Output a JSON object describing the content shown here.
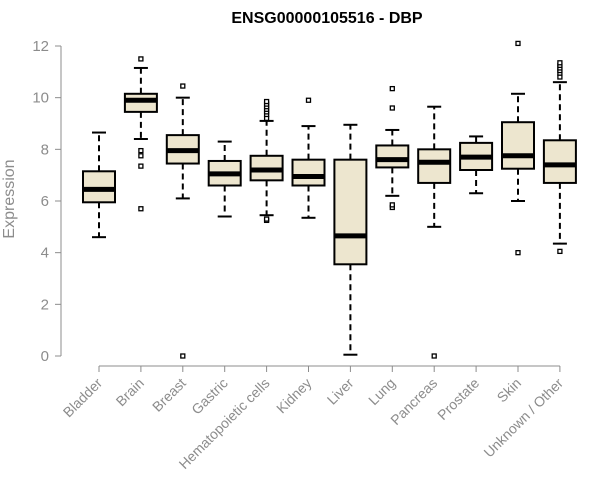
{
  "chart_data": {
    "type": "box",
    "title": "ENSG00000105516 - DBP",
    "xlabel": "",
    "ylabel": "Expression",
    "ylim": [
      0,
      12
    ],
    "yticks": [
      0,
      2,
      4,
      6,
      8,
      10,
      12
    ],
    "grid": false,
    "legend": "none",
    "colors": {
      "box_fill": "#ede6cf",
      "stroke": "#000000",
      "axis_text": "#8c8c8c"
    },
    "categories": [
      "Bladder",
      "Brain",
      "Breast",
      "Gastric",
      "Hematopoietic cells",
      "Kidney",
      "Liver",
      "Lung",
      "Pancreas",
      "Prostate",
      "Skin",
      "Unknown / Other"
    ],
    "boxes": [
      {
        "category": "Bladder",
        "whisker_low": 4.6,
        "q1": 5.95,
        "median": 6.45,
        "q3": 7.15,
        "whisker_high": 8.65,
        "outliers": []
      },
      {
        "category": "Brain",
        "whisker_low": 8.4,
        "q1": 9.45,
        "median": 9.9,
        "q3": 10.15,
        "whisker_high": 11.15,
        "outliers": [
          5.7,
          7.35,
          7.75,
          7.95,
          11.5
        ]
      },
      {
        "category": "Breast",
        "whisker_low": 6.1,
        "q1": 7.45,
        "median": 7.95,
        "q3": 8.55,
        "whisker_high": 10.0,
        "outliers": [
          0.0,
          10.45
        ]
      },
      {
        "category": "Gastric",
        "whisker_low": 5.4,
        "q1": 6.6,
        "median": 7.05,
        "q3": 7.55,
        "whisker_high": 8.3,
        "outliers": []
      },
      {
        "category": "Hematopoietic cells",
        "whisker_low": 5.45,
        "q1": 6.8,
        "median": 7.2,
        "q3": 7.75,
        "whisker_high": 9.1,
        "outliers": [
          5.25,
          5.3,
          9.2,
          9.35,
          9.45,
          9.55,
          9.65,
          9.75,
          9.85
        ]
      },
      {
        "category": "Kidney",
        "whisker_low": 5.35,
        "q1": 6.6,
        "median": 6.95,
        "q3": 7.6,
        "whisker_high": 8.9,
        "outliers": [
          9.9
        ]
      },
      {
        "category": "Liver",
        "whisker_low": 0.05,
        "q1": 3.55,
        "median": 4.65,
        "q3": 7.6,
        "whisker_high": 8.95,
        "outliers": []
      },
      {
        "category": "Lung",
        "whisker_low": 6.2,
        "q1": 7.3,
        "median": 7.6,
        "q3": 8.15,
        "whisker_high": 8.75,
        "outliers": [
          5.75,
          5.85,
          9.6,
          10.35
        ]
      },
      {
        "category": "Pancreas",
        "whisker_low": 5.0,
        "q1": 6.7,
        "median": 7.5,
        "q3": 8.0,
        "whisker_high": 9.65,
        "outliers": [
          0.0
        ]
      },
      {
        "category": "Prostate",
        "whisker_low": 6.3,
        "q1": 7.2,
        "median": 7.7,
        "q3": 8.25,
        "whisker_high": 8.5,
        "outliers": []
      },
      {
        "category": "Skin",
        "whisker_low": 6.0,
        "q1": 7.25,
        "median": 7.75,
        "q3": 9.05,
        "whisker_high": 10.15,
        "outliers": [
          4.0,
          12.1
        ]
      },
      {
        "category": "Unknown / Other",
        "whisker_low": 4.35,
        "q1": 6.7,
        "median": 7.4,
        "q3": 8.35,
        "whisker_high": 10.6,
        "outliers": [
          4.05,
          10.8,
          10.95,
          11.05,
          11.15,
          11.25,
          11.35
        ]
      }
    ]
  }
}
